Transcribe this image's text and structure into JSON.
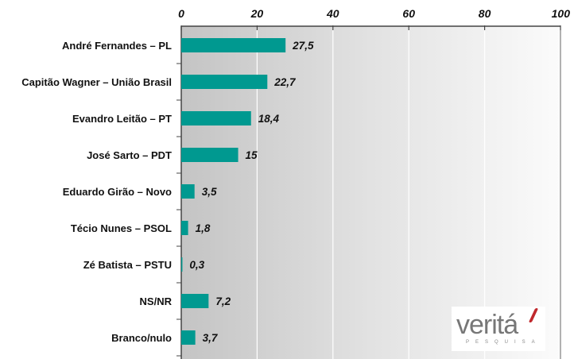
{
  "chart_data": {
    "type": "bar",
    "orientation": "horizontal",
    "categories": [
      "André Fernandes – PL",
      "Capitão Wagner – União Brasil",
      "Evandro Leitão – PT",
      "José Sarto – PDT",
      "Eduardo Girão – Novo",
      "Técio Nunes – PSOL",
      "Zé Batista – PSTU",
      "NS/NR",
      "Branco/nulo"
    ],
    "values": [
      27.5,
      22.7,
      18.4,
      15,
      3.5,
      1.8,
      0.3,
      7.2,
      3.7
    ],
    "data_labels": [
      "27,5",
      "22,7",
      "18,4",
      "15",
      "3,5",
      "1,8",
      "0,3",
      "7,2",
      "3,7"
    ],
    "xlim": [
      0,
      100
    ],
    "x_ticks": [
      "0",
      "20",
      "40",
      "60",
      "80",
      "100"
    ],
    "x_axis_position": "top",
    "grid": true,
    "bar_color": "#009990",
    "title": "",
    "xlabel": "",
    "ylabel": ""
  },
  "logo": {
    "text": "veritá",
    "subtext": "PESQUISA"
  }
}
